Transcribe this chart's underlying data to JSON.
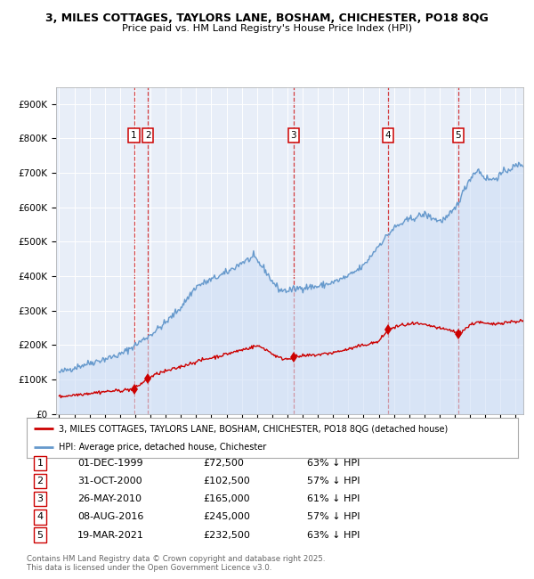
{
  "title_line1": "3, MILES COTTAGES, TAYLORS LANE, BOSHAM, CHICHESTER, PO18 8QG",
  "title_line2": "Price paid vs. HM Land Registry's House Price Index (HPI)",
  "ylim": [
    0,
    950000
  ],
  "xlim_start": 1994.8,
  "xlim_end": 2025.5,
  "yticks": [
    0,
    100000,
    200000,
    300000,
    400000,
    500000,
    600000,
    700000,
    800000,
    900000
  ],
  "ytick_labels": [
    "£0",
    "£100K",
    "£200K",
    "£300K",
    "£400K",
    "£500K",
    "£600K",
    "£700K",
    "£800K",
    "£900K"
  ],
  "sale_dates": [
    1999.917,
    2000.833,
    2010.4,
    2016.6,
    2021.22
  ],
  "sale_prices": [
    72500,
    102500,
    165000,
    245000,
    232500
  ],
  "sale_labels": [
    "1",
    "2",
    "3",
    "4",
    "5"
  ],
  "sale_color": "#cc0000",
  "hpi_color": "#6699cc",
  "hpi_fill_color": "#ccddf5",
  "background_color": "#e8eef8",
  "transaction_table": [
    [
      "1",
      "01-DEC-1999",
      "£72,500",
      "63% ↓ HPI"
    ],
    [
      "2",
      "31-OCT-2000",
      "£102,500",
      "57% ↓ HPI"
    ],
    [
      "3",
      "26-MAY-2010",
      "£165,000",
      "61% ↓ HPI"
    ],
    [
      "4",
      "08-AUG-2016",
      "£245,000",
      "57% ↓ HPI"
    ],
    [
      "5",
      "19-MAR-2021",
      "£232,500",
      "63% ↓ HPI"
    ]
  ],
  "legend_line1": "3, MILES COTTAGES, TAYLORS LANE, BOSHAM, CHICHESTER, PO18 8QG (detached house)",
  "legend_line2": "HPI: Average price, detached house, Chichester",
  "footnote": "Contains HM Land Registry data © Crown copyright and database right 2025.\nThis data is licensed under the Open Government Licence v3.0.",
  "hpi_anchors_x": [
    1995.0,
    1996.0,
    1997.0,
    1998.0,
    1999.0,
    2000.0,
    2001.0,
    2002.0,
    2003.0,
    2004.0,
    2005.0,
    2006.0,
    2007.0,
    2007.8,
    2008.5,
    2009.0,
    2009.5,
    2010.0,
    2010.4,
    2011.0,
    2012.0,
    2013.0,
    2014.0,
    2015.0,
    2016.0,
    2017.0,
    2018.0,
    2019.0,
    2020.0,
    2020.5,
    2021.0,
    2021.5,
    2022.0,
    2022.5,
    2023.0,
    2023.5,
    2024.0,
    2024.5,
    2025.3
  ],
  "hpi_anchors_y": [
    120000,
    135000,
    148000,
    160000,
    172000,
    200000,
    230000,
    265000,
    310000,
    370000,
    390000,
    410000,
    440000,
    455000,
    420000,
    385000,
    360000,
    358000,
    362000,
    368000,
    370000,
    382000,
    400000,
    430000,
    490000,
    540000,
    565000,
    580000,
    560000,
    570000,
    595000,
    640000,
    685000,
    710000,
    685000,
    680000,
    695000,
    710000,
    725000
  ],
  "red_anchors_x": [
    1995.0,
    1996.5,
    1998.0,
    1999.0,
    1999.917,
    2000.833,
    2001.5,
    2002.5,
    2003.5,
    2004.5,
    2005.5,
    2006.5,
    2007.5,
    2008.0,
    2008.5,
    2009.0,
    2009.5,
    2010.0,
    2010.4,
    2011.0,
    2012.0,
    2013.0,
    2014.0,
    2015.0,
    2016.0,
    2016.6,
    2017.5,
    2018.5,
    2019.0,
    2019.5,
    2020.0,
    2020.5,
    2021.0,
    2021.22,
    2022.0,
    2022.5,
    2023.0,
    2023.5,
    2024.0,
    2025.3
  ],
  "red_anchors_y": [
    50000,
    58000,
    65000,
    68000,
    72500,
    102500,
    118000,
    130000,
    145000,
    158000,
    168000,
    180000,
    192000,
    198000,
    190000,
    175000,
    162000,
    160000,
    165000,
    168000,
    172000,
    178000,
    188000,
    200000,
    210000,
    245000,
    258000,
    262000,
    258000,
    255000,
    248000,
    245000,
    240000,
    232500,
    258000,
    268000,
    262000,
    260000,
    265000,
    270000
  ]
}
